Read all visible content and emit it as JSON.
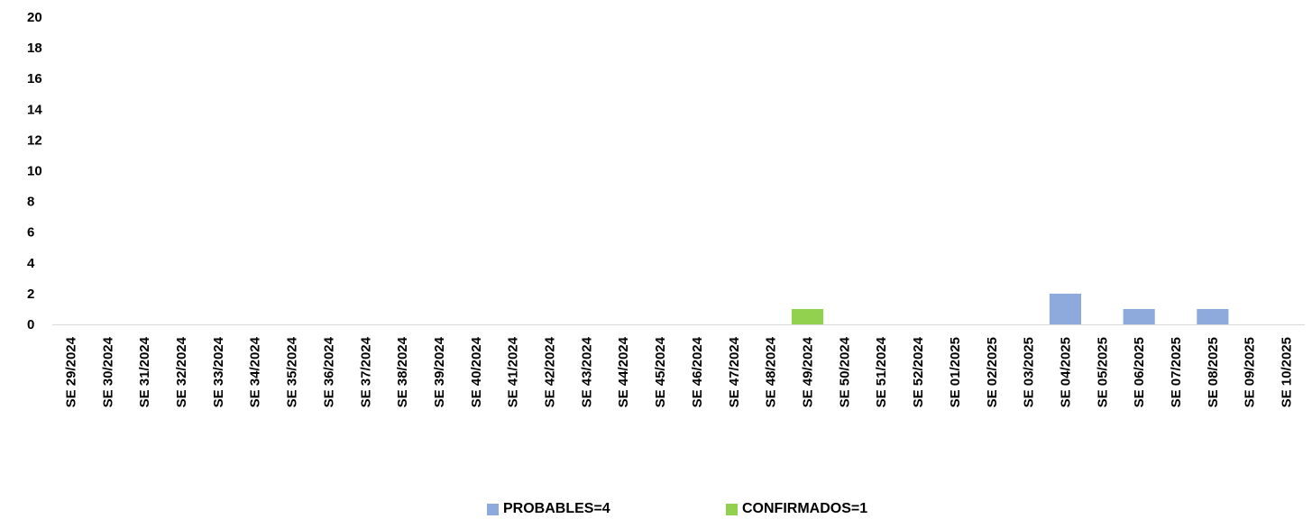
{
  "chart_data": {
    "type": "bar",
    "title": "",
    "xlabel": "",
    "ylabel": "",
    "ylim": [
      0,
      20
    ],
    "yticks": [
      "0",
      "2",
      "4",
      "6",
      "8",
      "10",
      "12",
      "14",
      "16",
      "18",
      "20"
    ],
    "grid": false,
    "legend_position": "bottom",
    "categories": [
      "SE 29/2024",
      "SE 30/2024",
      "SE 31/2024",
      "SE 32/2024",
      "SE 33/2024",
      "SE 34/2024",
      "SE 35/2024",
      "SE 36/2024",
      "SE 37/2024",
      "SE 38/2024",
      "SE 39/2024",
      "SE 40/2024",
      "SE 41/2024",
      "SE 42/2024",
      "SE 43/2024",
      "SE 44/2024",
      "SE 45/2024",
      "SE 46/2024",
      "SE 47/2024",
      "SE 48/2024",
      "SE 49/2024",
      "SE 50/2024",
      "SE 51/2024",
      "SE 52/2024",
      "SE 01/2025",
      "SE 02/2025",
      "SE 03/2025",
      "SE 04/2025",
      "SE 05/2025",
      "SE 06/2025",
      "SE 07/2025",
      "SE 08/2025",
      "SE 09/2025",
      "SE 10/2025"
    ],
    "series": [
      {
        "name": "PROBABLES=4",
        "color": "#8EA9DB",
        "values": [
          0,
          0,
          0,
          0,
          0,
          0,
          0,
          0,
          0,
          0,
          0,
          0,
          0,
          0,
          0,
          0,
          0,
          0,
          0,
          0,
          0,
          0,
          0,
          0,
          0,
          0,
          0,
          2,
          0,
          1,
          0,
          1,
          0,
          0
        ]
      },
      {
        "name": "CONFIRMADOS=1",
        "color": "#92D050",
        "values": [
          0,
          0,
          0,
          0,
          0,
          0,
          0,
          0,
          0,
          0,
          0,
          0,
          0,
          0,
          0,
          0,
          0,
          0,
          0,
          0,
          1,
          0,
          0,
          0,
          0,
          0,
          0,
          0,
          0,
          0,
          0,
          0,
          0,
          0
        ]
      }
    ]
  }
}
